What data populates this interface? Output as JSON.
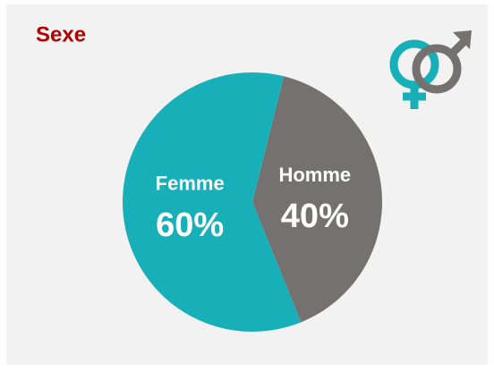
{
  "chart_data": {
    "type": "pie",
    "title": "Sexe",
    "categories": [
      "Femme",
      "Homme"
    ],
    "values": [
      60,
      40
    ],
    "value_labels": [
      "60%",
      "40%"
    ],
    "colors": [
      "#17b0b8",
      "#757170"
    ]
  }
}
